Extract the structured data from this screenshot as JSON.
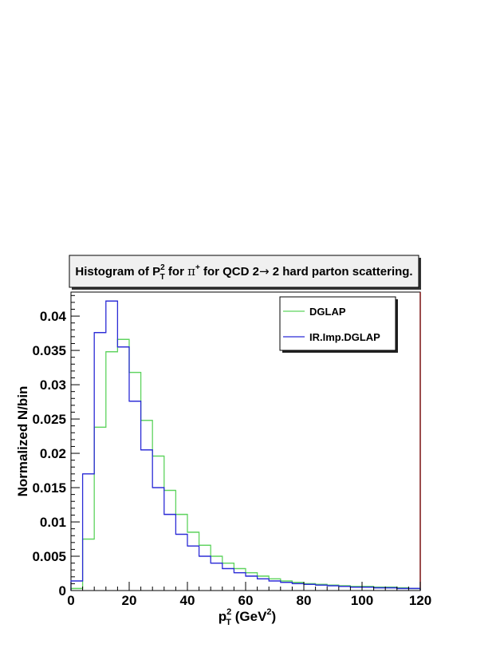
{
  "chart_data": {
    "type": "histogram",
    "title": {
      "prefix": "Histogram of P",
      "sup": "2",
      "sub": "T",
      "middle": " for ",
      "particle": "π",
      "particle_sup": "+",
      "suffix_before_arrow": " for QCD 2",
      "arrow": "→",
      "suffix_after_arrow": " 2 hard parton scattering."
    },
    "xlabel": {
      "base": "p",
      "sup": "2",
      "sub": "T",
      "unit_prefix": " (GeV",
      "unit_sup": "2",
      "unit_suffix": ")"
    },
    "ylabel": "Normalized N/bin",
    "xlim": [
      0,
      120
    ],
    "ylim": [
      0,
      0.0435
    ],
    "x_ticks": [
      0,
      20,
      40,
      60,
      80,
      100,
      120
    ],
    "x_tick_labels": [
      "0",
      "20",
      "40",
      "60",
      "80",
      "100",
      "120"
    ],
    "y_ticks": [
      0,
      0.005,
      0.01,
      0.015,
      0.02,
      0.025,
      0.03,
      0.035,
      0.04
    ],
    "y_tick_labels": [
      "0",
      "0.005",
      "0.01",
      "0.015",
      "0.02",
      "0.025",
      "0.03",
      "0.035",
      "0.04"
    ],
    "bin_edges": [
      0,
      4,
      8,
      12,
      16,
      20,
      24,
      28,
      32,
      36,
      40,
      44,
      48,
      52,
      56,
      60,
      64,
      68,
      72,
      76,
      80,
      84,
      88,
      92,
      96,
      100,
      104,
      108,
      112,
      116,
      120
    ],
    "legend_position": "top-right",
    "series": [
      {
        "name": "DGLAP",
        "color": "#5ed35e",
        "values": [
          0.0003,
          0.0075,
          0.0238,
          0.0348,
          0.0366,
          0.0318,
          0.0248,
          0.0196,
          0.0146,
          0.0111,
          0.0085,
          0.0066,
          0.005,
          0.004,
          0.0032,
          0.0026,
          0.0021,
          0.0017,
          0.0014,
          0.0012,
          0.001,
          0.0009,
          0.0008,
          0.0007,
          0.0006,
          0.0006,
          0.0005,
          0.0005,
          0.0004,
          0.0003
        ]
      },
      {
        "name": "IR.Imp.DGLAP",
        "color": "#2b2bd6",
        "values": [
          0.0014,
          0.017,
          0.0376,
          0.0422,
          0.0355,
          0.0276,
          0.0205,
          0.015,
          0.0111,
          0.0082,
          0.0065,
          0.005,
          0.004,
          0.0032,
          0.0026,
          0.0021,
          0.0017,
          0.0014,
          0.0012,
          0.001,
          0.0009,
          0.0008,
          0.0007,
          0.0006,
          0.0005,
          0.0005,
          0.0004,
          0.0004,
          0.0003,
          0.0003
        ]
      }
    ]
  }
}
